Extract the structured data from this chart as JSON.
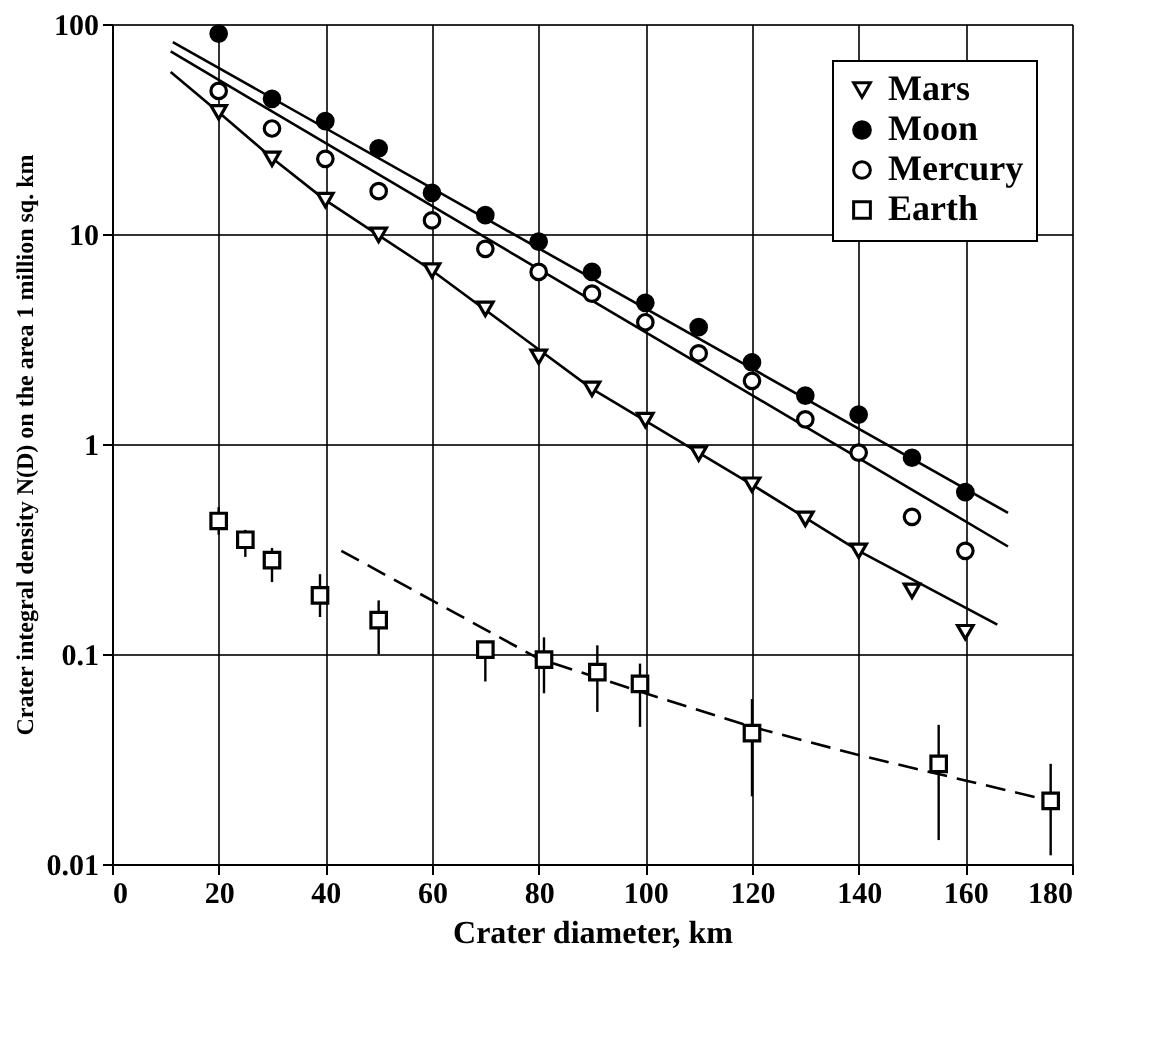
{
  "chart_data": {
    "type": "scatter",
    "xlabel": "Crater diameter,  km",
    "ylabel": "Crater integral density N(D) on the area 1 million sq. km",
    "xlim": [
      0,
      180
    ],
    "xticks": [
      0,
      20,
      40,
      60,
      80,
      100,
      120,
      140,
      160,
      180
    ],
    "ylim": [
      0.01,
      100
    ],
    "yticks": [
      0.01,
      0.1,
      1,
      10,
      100
    ],
    "log": "y",
    "grid": true,
    "legend": "top right",
    "series": [
      {
        "name": "Mars",
        "color": "#ffffff",
        "marker": "triangle",
        "x": [
          20,
          30,
          40,
          50,
          60,
          70,
          80,
          90,
          100,
          110,
          120,
          130,
          140,
          150,
          160
        ],
        "values": [
          38,
          22.8,
          14.5,
          9.9,
          6.7,
          4.4,
          2.6,
          1.83,
          1.3,
          0.9,
          0.64,
          0.44,
          0.31,
          0.2,
          0.127
        ]
      },
      {
        "name": "Moon",
        "color": "#000000",
        "marker": "circle",
        "x": [
          20,
          30,
          40,
          50,
          60,
          70,
          80,
          90,
          100,
          110,
          120,
          130,
          140,
          150,
          160
        ],
        "values": [
          90,
          44,
          34.5,
          25.6,
          15.7,
          12.3,
          9.2,
          6.6,
          4.7,
          3.6,
          2.45,
          1.7,
          1.38,
          0.86,
          0.59
        ]
      },
      {
        "name": "Mercury",
        "color": "#ffffff",
        "marker": "circle",
        "x": [
          20,
          30,
          40,
          50,
          60,
          70,
          80,
          90,
          100,
          110,
          120,
          130,
          140,
          150,
          160
        ],
        "values": [
          48,
          31.8,
          22.8,
          16,
          11.6,
          8.5,
          6.6,
          5.2,
          3.8,
          2.7,
          2.0,
          1.31,
          0.91,
          0.45,
          0.31
        ]
      },
      {
        "name": "Earth",
        "color": "#ffffff",
        "marker": "square",
        "x": [
          20,
          25,
          30,
          39,
          50,
          70,
          81,
          91,
          99,
          120,
          155,
          176
        ],
        "values": [
          0.43,
          0.35,
          0.28,
          0.19,
          0.145,
          0.105,
          0.094,
          0.082,
          0.072,
          0.042,
          0.03,
          0.02
        ],
        "errors": [
          [
            0.37,
            0.5
          ],
          [
            0.29,
            0.39
          ],
          [
            0.22,
            0.32
          ],
          [
            0.15,
            0.24
          ],
          [
            0.1,
            0.18
          ],
          [
            0.074,
            0.11
          ],
          [
            0.065,
            0.12
          ],
          [
            0.053,
            0.11
          ],
          [
            0.045,
            0.09
          ],
          [
            0.021,
            0.061
          ],
          [
            0.013,
            0.046
          ],
          [
            0.011,
            0.03
          ]
        ]
      },
      {
        "type": "line",
        "color": "#000000",
        "line_style": "solid",
        "x": [
          11.4,
          168
        ],
        "values": [
          82,
          0.47
        ]
      },
      {
        "type": "line",
        "color": "#000000",
        "line_style": "solid",
        "x": [
          11,
          168
        ],
        "values": [
          74,
          0.325
        ]
      },
      {
        "type": "line",
        "color": "#000000",
        "line_style": "solid",
        "x": [
          11,
          20,
          30,
          40,
          60,
          90,
          120,
          140,
          166
        ],
        "values": [
          59,
          38,
          23,
          14.5,
          6.7,
          1.83,
          0.64,
          0.31,
          0.138
        ]
      },
      {
        "type": "line",
        "color": "#000000",
        "line_style": "dashed",
        "x": [
          43,
          60,
          80,
          100,
          120,
          140,
          160,
          176
        ],
        "values": [
          0.31,
          0.18,
          0.095,
          0.065,
          0.045,
          0.033,
          0.025,
          0.02
        ]
      }
    ]
  }
}
